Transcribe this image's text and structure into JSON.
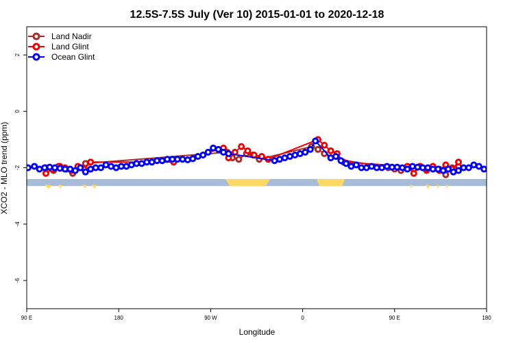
{
  "chart_data": {
    "type": "line",
    "title": "12.5S-7.5S July (Ver 10)   2015-01-01 to 2020-12-18",
    "xlabel": "Longitude",
    "ylabel": "XCO2 - MLO trend (ppm)",
    "xlim": [
      90,
      450
    ],
    "ylim": [
      -7,
      3
    ],
    "x_ticks": [
      {
        "value": 90,
        "label": "90 E"
      },
      {
        "value": 162,
        "label": "180"
      },
      {
        "value": 234,
        "label": "90 W"
      },
      {
        "value": 306,
        "label": "0"
      },
      {
        "value": 378,
        "label": "90 E"
      },
      {
        "value": 450,
        "label": "180"
      }
    ],
    "y_ticks": [
      {
        "value": 2,
        "label": "2"
      },
      {
        "value": 0,
        "label": "0"
      },
      {
        "value": -2,
        "label": "-2"
      },
      {
        "value": -4,
        "label": "-4"
      },
      {
        "value": -6,
        "label": "-6"
      }
    ],
    "grid": false,
    "legend_position": "top-left",
    "map_strip": {
      "y_top": -2.4,
      "y_bottom": -2.65,
      "ocean_color": "#a8bcd8",
      "land_color": "#ffd966",
      "land_ranges": [
        [
          245.5,
          280.5
        ],
        [
          317,
          339
        ]
      ],
      "land_fragments": [
        [
          104,
          110
        ],
        [
          115,
          118
        ],
        [
          134,
          137
        ],
        [
          141,
          145
        ],
        [
          390,
          392
        ],
        [
          402,
          406
        ],
        [
          411,
          413
        ],
        [
          418,
          420
        ]
      ]
    },
    "series": [
      {
        "name": "Land Nadir",
        "color": "#a52a2a",
        "x": [
          105,
          111,
          116,
          121,
          126,
          131,
          136,
          247,
          251,
          256,
          262,
          267,
          272,
          313,
          318,
          323,
          328,
          373,
          378,
          383,
          388,
          393,
          398,
          403,
          408,
          413,
          418,
          423,
          428
        ],
        "y": [
          -2.0,
          -2.1,
          -1.95,
          -2.05,
          -2.2,
          -2.0,
          -1.85,
          -1.45,
          -1.65,
          -1.7,
          -1.5,
          -1.55,
          -1.7,
          -1.25,
          -1.35,
          -1.5,
          -1.65,
          -2.0,
          -2.05,
          -2.1,
          -2.0,
          -2.05,
          -1.95,
          -2.1,
          -2.0,
          -2.05,
          -2.25,
          -2.0,
          -1.95
        ]
      },
      {
        "name": "Land Glint",
        "color": "#ee0000",
        "x": [
          105,
          110,
          115,
          120,
          125,
          130,
          135,
          140,
          205,
          244,
          248,
          253,
          258,
          263,
          268,
          274,
          279,
          318,
          323,
          328,
          333,
          338,
          388,
          393,
          398,
          403,
          408,
          413,
          418,
          423,
          428
        ],
        "y": [
          -2.2,
          -2.05,
          -1.95,
          -2.0,
          -2.1,
          -1.95,
          -2.05,
          -1.8,
          -1.8,
          -1.3,
          -1.65,
          -1.45,
          -1.25,
          -1.4,
          -1.55,
          -1.6,
          -1.7,
          -1.0,
          -1.2,
          -1.4,
          -1.5,
          -1.8,
          -1.95,
          -2.2,
          -1.95,
          -2.05,
          -1.95,
          -2.1,
          -1.9,
          -2.05,
          -1.8
        ]
      },
      {
        "name": "Ocean Glint",
        "color": "#0000ee",
        "x": [
          91,
          96,
          100,
          104,
          108,
          112,
          116,
          120,
          124,
          128,
          132,
          136,
          140,
          144,
          148,
          152,
          156,
          160,
          164,
          168,
          172,
          176,
          180,
          184,
          188,
          192,
          196,
          200,
          204,
          208,
          212,
          216,
          220,
          224,
          228,
          232,
          236,
          240,
          244,
          248,
          284,
          288,
          292,
          296,
          300,
          304,
          308,
          312,
          316,
          328,
          332,
          336,
          340,
          344,
          348,
          352,
          356,
          360,
          364,
          368,
          372,
          376,
          380,
          384,
          388,
          392,
          396,
          400,
          404,
          408,
          412,
          416,
          420,
          424,
          428,
          432,
          436,
          440,
          444,
          448
        ],
        "y": [
          -2.0,
          -1.95,
          -2.05,
          -2.0,
          -1.98,
          -2.0,
          -2.02,
          -2.05,
          -2.05,
          -2.1,
          -2.0,
          -2.15,
          -2.05,
          -2.0,
          -2.0,
          -1.9,
          -1.95,
          -2.0,
          -1.95,
          -1.95,
          -1.9,
          -1.85,
          -1.85,
          -1.8,
          -1.8,
          -1.75,
          -1.75,
          -1.7,
          -1.7,
          -1.7,
          -1.7,
          -1.72,
          -1.68,
          -1.6,
          -1.55,
          -1.45,
          -1.3,
          -1.35,
          -1.45,
          -1.5,
          -1.75,
          -1.7,
          -1.65,
          -1.6,
          -1.55,
          -1.5,
          -1.45,
          -1.35,
          -1.05,
          -1.65,
          -1.6,
          -1.75,
          -1.85,
          -1.95,
          -1.9,
          -2.0,
          -2.0,
          -1.95,
          -2.0,
          -2.0,
          -1.95,
          -1.98,
          -1.98,
          -2.0,
          -2.05,
          -1.95,
          -1.98,
          -2.0,
          -2.0,
          -2.05,
          -2.05,
          -2.1,
          -2.05,
          -2.15,
          -2.1,
          -2.0,
          -2.0,
          -1.9,
          -1.95,
          -2.05
        ]
      }
    ]
  }
}
